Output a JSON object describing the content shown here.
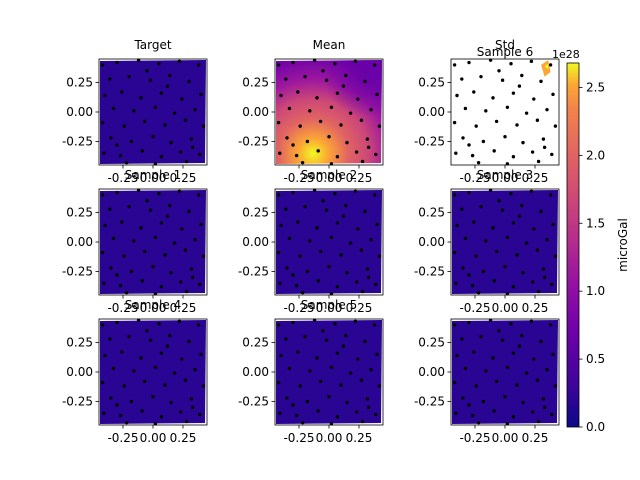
{
  "chart_data": {
    "type": "contour-grid",
    "xticks": [
      "-0.25",
      "0.00",
      "0.25"
    ],
    "yticks": [
      "0.25",
      "0.00",
      "-0.25"
    ],
    "xtick_values": [
      -0.25,
      0.0,
      0.25
    ],
    "ytick_values": [
      0.25,
      0.0,
      -0.25
    ],
    "xlim": [
      -0.45,
      0.45
    ],
    "ylim": [
      -0.45,
      0.45
    ],
    "panels": [
      {
        "title": "Target",
        "fill": "uniform-low"
      },
      {
        "title": "Mean",
        "fill": "gradient"
      },
      {
        "title": "Std",
        "fill": "hotspot",
        "overlap_title": "Sample 6"
      },
      {
        "title": "Sample 1",
        "fill": "uniform-low"
      },
      {
        "title": "Sample 2",
        "fill": "uniform-low"
      },
      {
        "title": "Sample 3",
        "fill": "uniform-low"
      },
      {
        "title": "Sample 4",
        "fill": "uniform-low"
      },
      {
        "title": "Sample 5",
        "fill": "uniform-low"
      },
      {
        "title": "",
        "fill": "uniform-low"
      }
    ],
    "colorbar": {
      "label": "microGal",
      "offset_text": "1e28",
      "ticks": [
        "0.0",
        "0.5",
        "1.0",
        "1.5",
        "2.0",
        "2.5"
      ],
      "tick_values": [
        0.0,
        0.5,
        1.0,
        1.5,
        2.0,
        2.5
      ],
      "range": [
        0,
        2.68
      ],
      "colormap": "plasma"
    },
    "stations": [
      [
        -0.42,
        0.4
      ],
      [
        -0.3,
        0.42
      ],
      [
        -0.12,
        0.44
      ],
      [
        0.05,
        0.41
      ],
      [
        0.22,
        0.43
      ],
      [
        0.38,
        0.4
      ],
      [
        -0.36,
        0.28
      ],
      [
        -0.2,
        0.3
      ],
      [
        -0.02,
        0.27
      ],
      [
        0.14,
        0.31
      ],
      [
        0.3,
        0.26
      ],
      [
        -0.4,
        0.14
      ],
      [
        -0.26,
        0.17
      ],
      [
        -0.1,
        0.12
      ],
      [
        0.07,
        0.16
      ],
      [
        0.24,
        0.11
      ],
      [
        0.4,
        0.15
      ],
      [
        -0.33,
        0.03
      ],
      [
        -0.16,
        0.01
      ],
      [
        0.02,
        0.04
      ],
      [
        0.18,
        -0.01
      ],
      [
        0.35,
        0.02
      ],
      [
        -0.42,
        -0.09
      ],
      [
        -0.24,
        -0.12
      ],
      [
        -0.07,
        -0.08
      ],
      [
        0.1,
        -0.11
      ],
      [
        0.27,
        -0.07
      ],
      [
        0.42,
        -0.12
      ],
      [
        -0.35,
        -0.22
      ],
      [
        -0.18,
        -0.25
      ],
      [
        0.0,
        -0.21
      ],
      [
        0.15,
        -0.26
      ],
      [
        0.32,
        -0.23
      ],
      [
        -0.41,
        -0.35
      ],
      [
        -0.27,
        -0.37
      ],
      [
        -0.09,
        -0.33
      ],
      [
        0.07,
        -0.38
      ],
      [
        0.23,
        -0.34
      ],
      [
        0.39,
        -0.36
      ],
      [
        -0.22,
        -0.43
      ],
      [
        0.02,
        -0.44
      ],
      [
        0.28,
        -0.42
      ],
      [
        -0.05,
        0.35
      ],
      [
        0.33,
        -0.3
      ],
      [
        -0.3,
        -0.28
      ],
      [
        0.12,
        0.22
      ]
    ]
  }
}
